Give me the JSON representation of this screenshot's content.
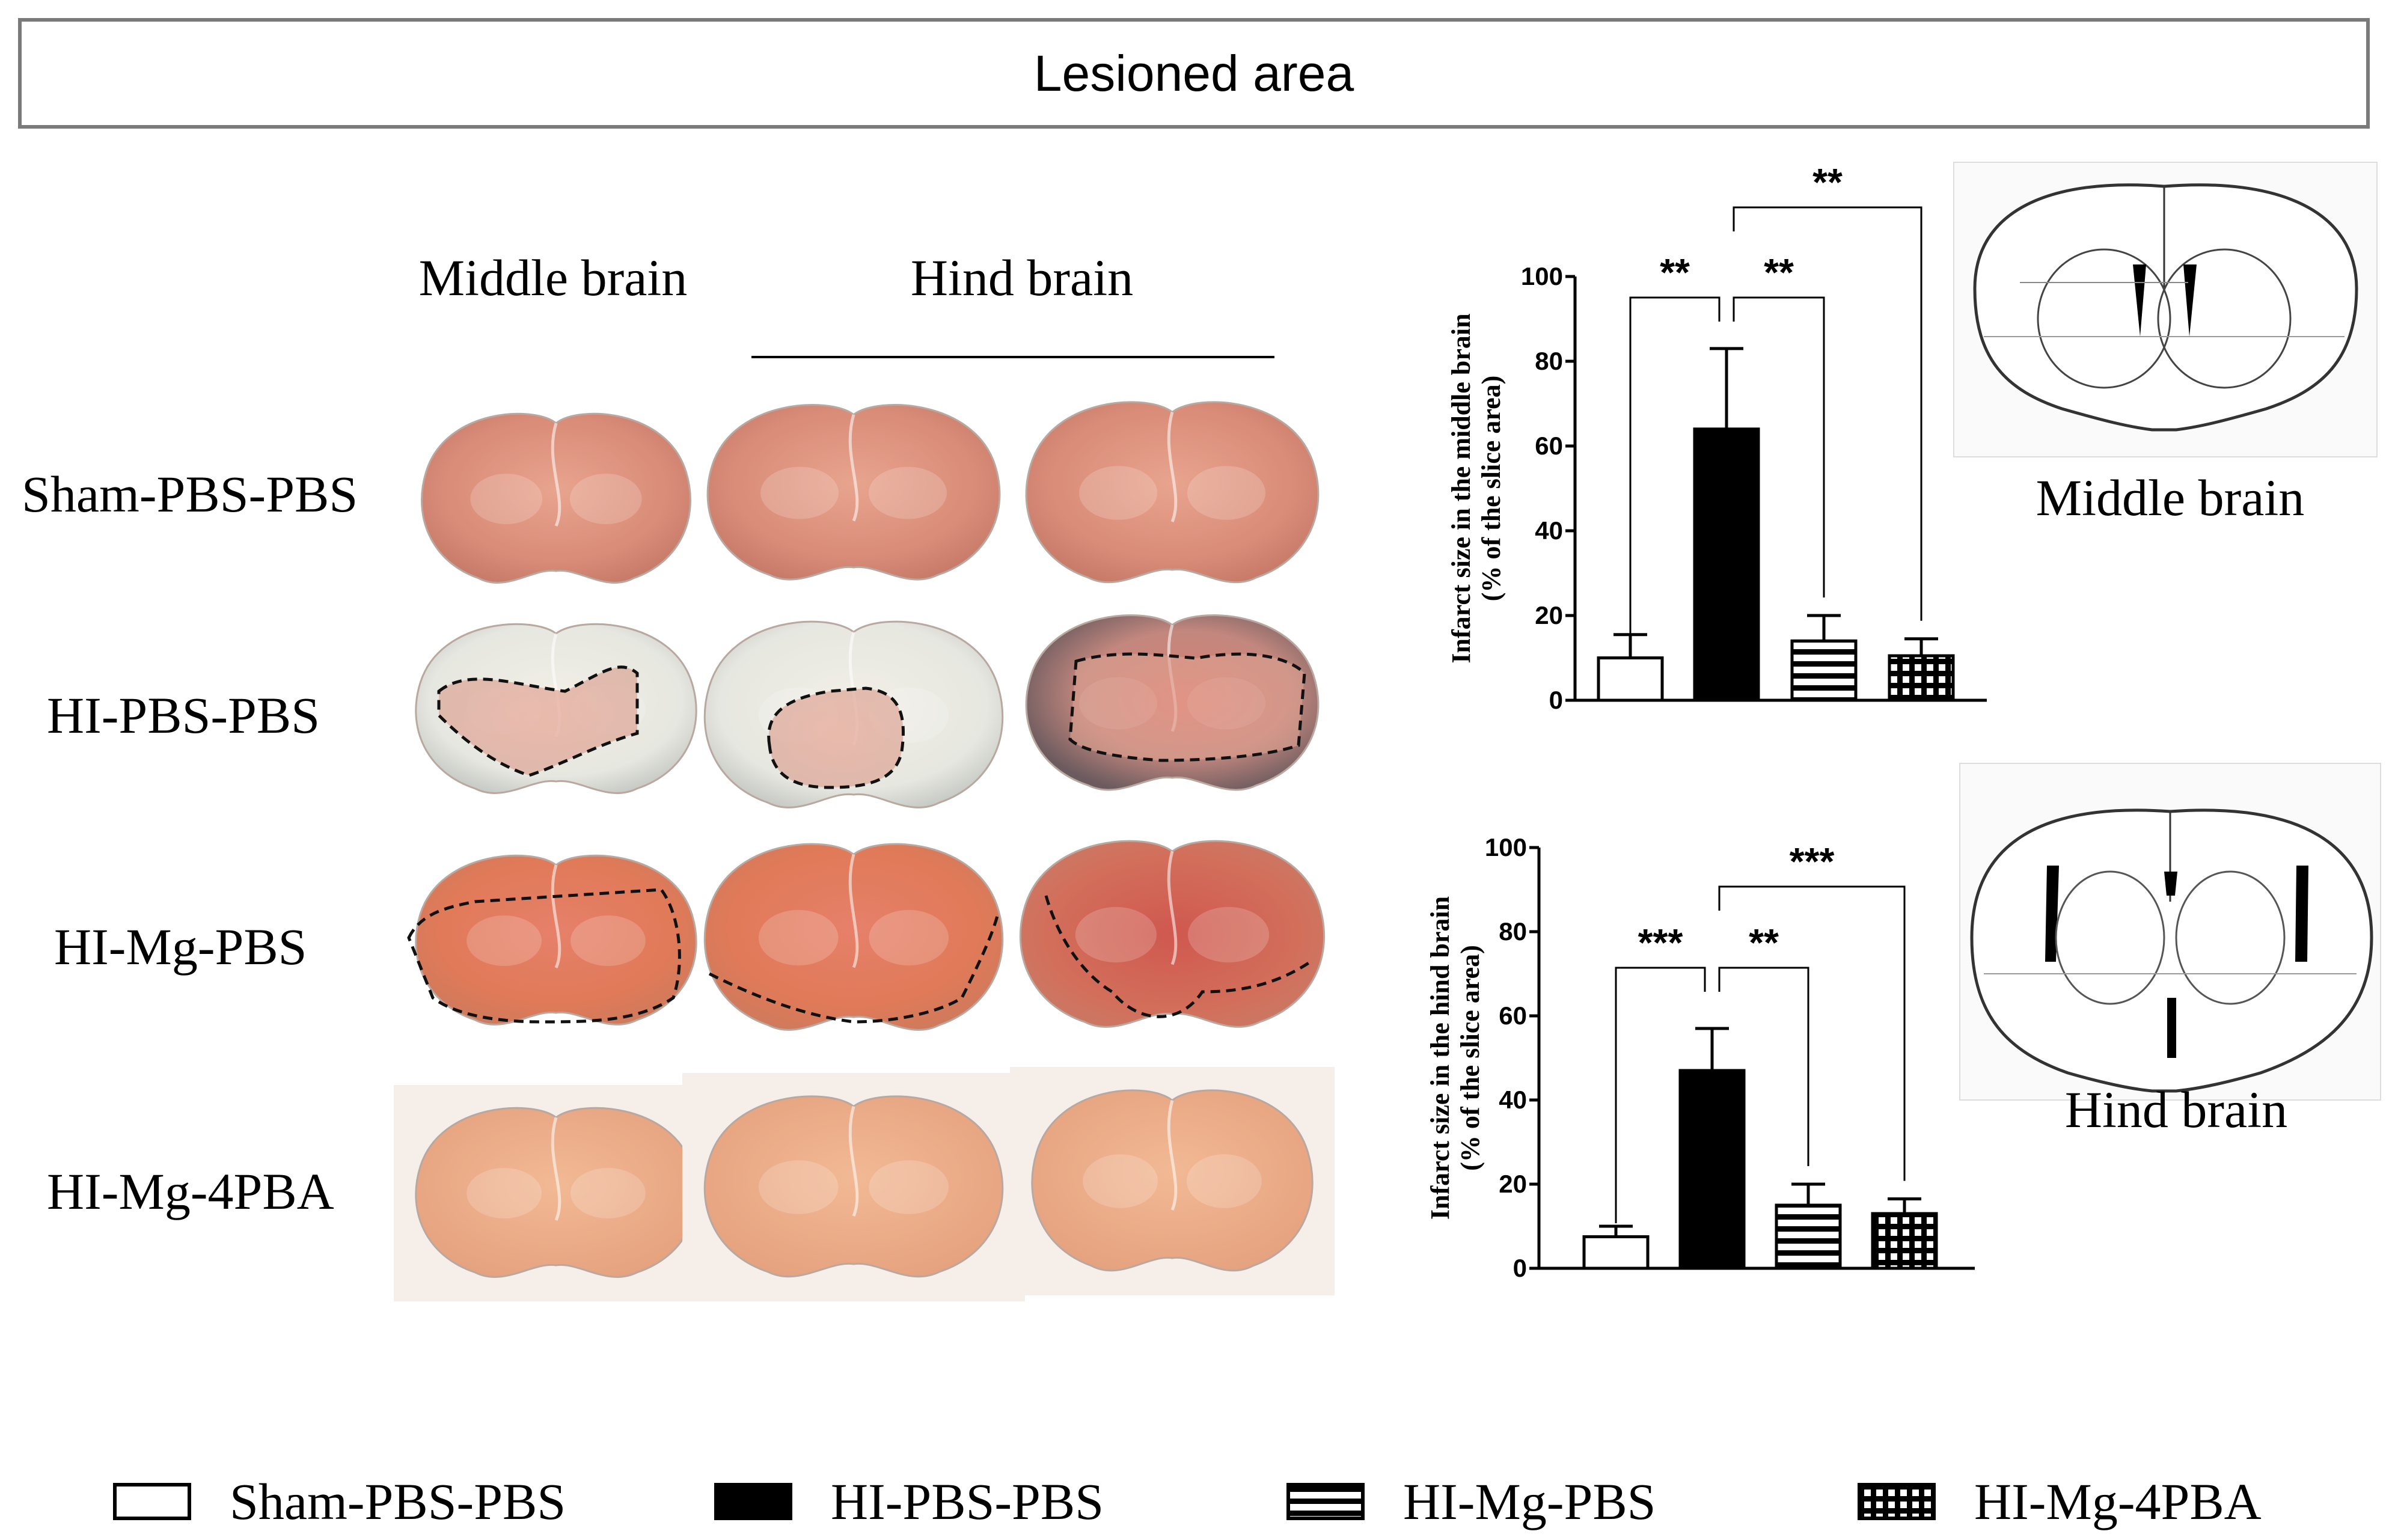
{
  "header": {
    "title": "Lesioned area"
  },
  "columns": {
    "middle": "Middle brain",
    "hind": "Hind brain"
  },
  "rows": [
    "Sham-PBS-PBS",
    "HI-PBS-PBS",
    "HI-Mg-PBS",
    "HI-Mg-4PBA"
  ],
  "atlas": {
    "middle_label": "Middle brain",
    "hind_label": "Hind brain"
  },
  "legend": [
    {
      "label": "Sham-PBS-PBS",
      "pattern": "open"
    },
    {
      "label": "HI-PBS-PBS",
      "pattern": "solid"
    },
    {
      "label": "HI-Mg-PBS",
      "pattern": "horizontal-stripes"
    },
    {
      "label": "HI-Mg-4PBA",
      "pattern": "grid"
    }
  ],
  "chart_data": [
    {
      "type": "bar",
      "ylabel": "Infarct size in the middle brain (% of the slice area)",
      "ylabel_lines": [
        "Infarct size in the middle brain",
        "(% of the slice area)"
      ],
      "categories": [
        "Sham-PBS-PBS",
        "HI-PBS-PBS",
        "HI-Mg-PBS",
        "HI-Mg-4PBA"
      ],
      "values": [
        10,
        64,
        14,
        10.5
      ],
      "errors": [
        5.5,
        19,
        6,
        4
      ],
      "ylim": [
        0,
        100
      ],
      "yticks": [
        "0",
        "20",
        "40",
        "60",
        "80",
        "100"
      ],
      "significance": [
        {
          "from": 0,
          "to": 1,
          "label": "**"
        },
        {
          "from": 1,
          "to": 2,
          "label": "**"
        },
        {
          "from": 1,
          "to": 3,
          "label": "**"
        }
      ]
    },
    {
      "type": "bar",
      "ylabel": "Infarct size in the hind brain (% of the slice area)",
      "ylabel_lines": [
        "Infarct size in the hind brain",
        "(% of the slice area)"
      ],
      "categories": [
        "Sham-PBS-PBS",
        "HI-PBS-PBS",
        "HI-Mg-PBS",
        "HI-Mg-4PBA"
      ],
      "values": [
        7.5,
        47,
        15,
        13
      ],
      "errors": [
        2.5,
        10,
        5,
        3.5
      ],
      "ylim": [
        0,
        100
      ],
      "yticks": [
        "0",
        "20",
        "40",
        "60",
        "80",
        "100"
      ],
      "significance": [
        {
          "from": 0,
          "to": 1,
          "label": "***"
        },
        {
          "from": 1,
          "to": 2,
          "label": "**"
        },
        {
          "from": 1,
          "to": 3,
          "label": "***"
        }
      ]
    }
  ]
}
